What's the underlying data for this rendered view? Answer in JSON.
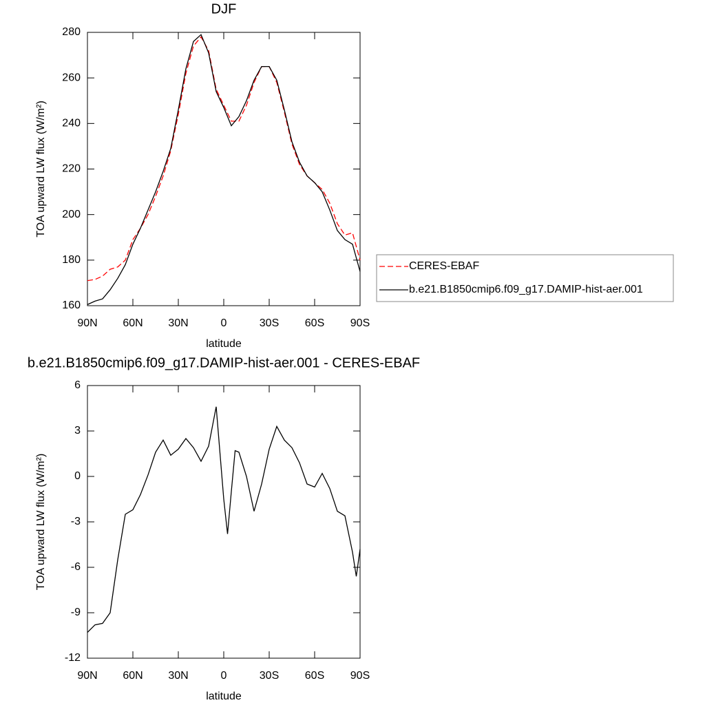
{
  "chart_data": [
    {
      "type": "line",
      "title": "DJF",
      "xlabel": "latitude",
      "ylabel": "TOA upward LW flux (W/m²)",
      "x": [
        90,
        85,
        80,
        75,
        70,
        65,
        60,
        55,
        50,
        45,
        40,
        35,
        30,
        25,
        20,
        15,
        10,
        5,
        0,
        -5,
        -10,
        -15,
        -20,
        -25,
        -30,
        -35,
        -40,
        -45,
        -50,
        -55,
        -60,
        -65,
        -70,
        -75,
        -80,
        -85,
        -90
      ],
      "series": [
        {
          "name": "CERES-EBAF",
          "color": "#ff0000",
          "linestyle": "dashed",
          "values": [
            171,
            171.5,
            173,
            176,
            177,
            180,
            189,
            194,
            200,
            208,
            217,
            228,
            244,
            262,
            274,
            278,
            272,
            255,
            248,
            241,
            241,
            248,
            258,
            265,
            265,
            258,
            245,
            231,
            222,
            217,
            214,
            211,
            205,
            196,
            191,
            192,
            180
          ]
        },
        {
          "name": "b.e21.B1850cmip6.f09_g17.DAMIP-hist-aer.001",
          "color": "#000000",
          "linestyle": "solid",
          "values": [
            160.5,
            162,
            163,
            167,
            172,
            178,
            187,
            194,
            202,
            210,
            219,
            229,
            246,
            264,
            276,
            279,
            271,
            254,
            247,
            239,
            243,
            250,
            259,
            265,
            265,
            259,
            246,
            232,
            223,
            217,
            214,
            210,
            202,
            193,
            189,
            187,
            175
          ]
        }
      ],
      "xlim": [
        90,
        -90
      ],
      "xticks": [
        {
          "value": 90,
          "label": "90N"
        },
        {
          "value": 60,
          "label": "60N"
        },
        {
          "value": 30,
          "label": "30N"
        },
        0,
        {
          "value": -30,
          "label": "30S"
        },
        {
          "value": -60,
          "label": "60S"
        },
        {
          "value": -90,
          "label": "90S"
        }
      ],
      "ylim": [
        160,
        280
      ],
      "yticks": [
        160,
        180,
        200,
        220,
        240,
        260,
        280
      ],
      "legend": "right"
    },
    {
      "type": "line",
      "title": "b.e21.B1850cmip6.f09_g17.DAMIP-hist-aer.001 - CERES-EBAF",
      "xlabel": "latitude",
      "ylabel": "TOA upward LW flux (W/m²)",
      "x": [
        90,
        85,
        80,
        75,
        70,
        65,
        60,
        55,
        50,
        45,
        40,
        35,
        30,
        25,
        20,
        15,
        10,
        5,
        0,
        -2.5,
        -5,
        -7.5,
        -10,
        -15,
        -20,
        -25,
        -30,
        -35,
        -40,
        -45,
        -50,
        -55,
        -60,
        -65,
        -70,
        -75,
        -80,
        -85,
        -87.5,
        -90
      ],
      "color": "#000000",
      "values": [
        -10.3,
        -9.8,
        -9.7,
        -9.0,
        -5.5,
        -2.5,
        -2.2,
        -1.2,
        0.1,
        1.6,
        2.4,
        1.4,
        1.8,
        2.5,
        1.9,
        1.0,
        2.0,
        4.6,
        -1.5,
        -3.8,
        -1,
        1.7,
        1.6,
        0,
        -2.3,
        -0.5,
        1.8,
        3.3,
        2.4,
        1.9,
        0.9,
        -0.5,
        -0.7,
        0.2,
        -0.8,
        -2.3,
        -2.6,
        -5,
        -6.6,
        -4.8
      ],
      "xlim": [
        90,
        -90
      ],
      "xticks": [
        {
          "value": 90,
          "label": "90N"
        },
        {
          "value": 60,
          "label": "60N"
        },
        {
          "value": 30,
          "label": "30N"
        },
        0,
        {
          "value": -30,
          "label": "30S"
        },
        {
          "value": -60,
          "label": "60S"
        },
        {
          "value": -90,
          "label": "90S"
        }
      ],
      "ylim": [
        -12,
        6
      ],
      "yticks": [
        -12,
        -9,
        -6,
        -3,
        0,
        3,
        6
      ]
    }
  ]
}
